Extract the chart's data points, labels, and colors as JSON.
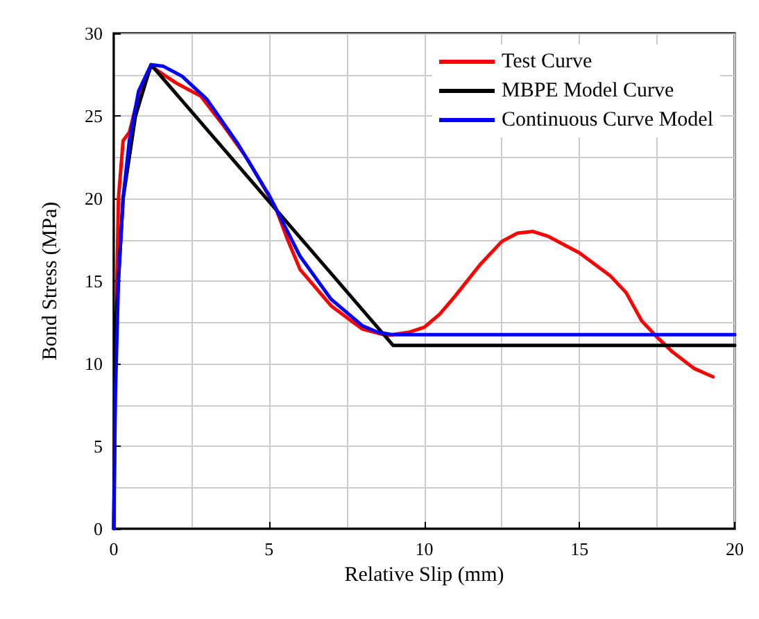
{
  "chart_data": {
    "type": "line",
    "xlabel": "Relative Slip (mm)",
    "ylabel": "Bond Stress (MPa)",
    "xlim": [
      0,
      20
    ],
    "xticks": [
      0,
      5,
      10,
      15,
      20
    ],
    "ylim": [
      0,
      30
    ],
    "yticks": [
      0,
      5,
      10,
      15,
      20,
      25,
      30
    ],
    "grid": true,
    "legend": "top right",
    "marker": "none",
    "line_style": "solid",
    "series": [
      {
        "name": "Test Curve",
        "color": "#ff0000",
        "x": [
          0,
          0.05,
          0.15,
          0.3,
          0.5,
          0.7,
          1.2,
          2,
          2.8,
          3.5,
          4.3,
          5.2,
          5.6,
          6,
          7,
          8,
          8.8,
          9.5,
          10,
          10.5,
          11,
          11.8,
          12.5,
          13,
          13.5,
          14,
          15,
          16,
          16.5,
          17,
          17.5,
          18,
          18.7,
          19.3
        ],
        "values": [
          0,
          10,
          20,
          23.5,
          24,
          25.5,
          28,
          27,
          26.2,
          24.5,
          22.4,
          19.5,
          17.5,
          15.7,
          13.5,
          12.1,
          11.7,
          11.9,
          12.2,
          13,
          14.1,
          16,
          17.4,
          17.9,
          18,
          17.7,
          16.7,
          15.3,
          14.3,
          12.6,
          11.6,
          10.7,
          9.7,
          9.2
        ]
      },
      {
        "name": "MBPE Model Curve",
        "color": "#000000",
        "x": [
          0,
          0.05,
          0.3,
          0.7,
          1.2,
          9,
          20
        ],
        "values": [
          0,
          12,
          20,
          25,
          28.1,
          11.1,
          11.1
        ]
      },
      {
        "name": "Continuous Curve Model",
        "color": "#0000ff",
        "x": [
          0,
          0.05,
          0.15,
          0.3,
          0.5,
          0.8,
          1.2,
          1.6,
          2.2,
          3,
          4,
          5,
          6,
          7,
          8,
          8.5,
          9,
          20
        ],
        "values": [
          0,
          8,
          15,
          20,
          23.5,
          26.5,
          28.1,
          28,
          27.4,
          26,
          23.3,
          20.2,
          16.5,
          13.9,
          12.3,
          11.9,
          11.75,
          11.75
        ]
      }
    ]
  }
}
